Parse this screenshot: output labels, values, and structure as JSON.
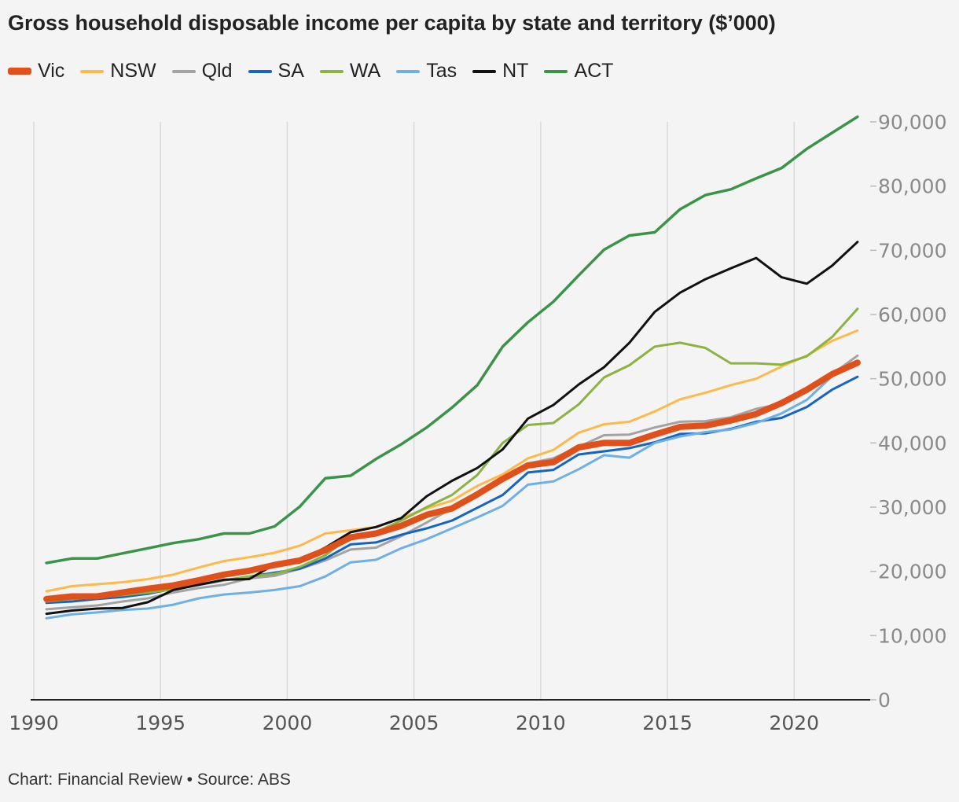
{
  "chart_data": {
    "type": "line",
    "title": "Gross household disposable income per capita by state and territory ($’000)",
    "source": "Chart: Financial Review • Source: ABS",
    "x": [
      1990.5,
      1991.5,
      1992.5,
      1993.5,
      1994.5,
      1995.5,
      1996.5,
      1997.5,
      1998.5,
      1999.5,
      2000.5,
      2001.5,
      2002.5,
      2003.5,
      2004.5,
      2005.5,
      2006.5,
      2007.5,
      2008.5,
      2009.5,
      2010.5,
      2011.5,
      2012.5,
      2013.5,
      2014.5,
      2015.5,
      2016.5,
      2017.5,
      2018.5,
      2019.5,
      2020.5,
      2021.5,
      2022.5
    ],
    "xlim": [
      1990,
      2023
    ],
    "ylim": [
      0,
      90000
    ],
    "x_ticks": [
      1990,
      1995,
      2000,
      2005,
      2010,
      2015,
      2020
    ],
    "x_tick_labels": [
      "1990",
      "1995",
      "2000",
      "2005",
      "2010",
      "2015",
      "2020"
    ],
    "y_ticks": [
      0,
      10000,
      20000,
      30000,
      40000,
      50000,
      60000,
      70000,
      80000,
      90000
    ],
    "y_tick_labels": [
      "0",
      "10,000",
      "20,000",
      "30,000",
      "40,000",
      "50,000",
      "60,000",
      "70,000",
      "80,000",
      "90,000"
    ],
    "grid": "vertical",
    "y_axis_position": "right",
    "legend_position": "top-left",
    "series": [
      {
        "name": "NSW",
        "color": "#fdb94a",
        "width": 3,
        "values": [
          16900,
          17700,
          18000,
          18300,
          18800,
          19500,
          20600,
          21600,
          22200,
          22900,
          24000,
          25900,
          26400,
          26900,
          28300,
          29800,
          31000,
          33300,
          35100,
          37600,
          38900,
          41600,
          42900,
          43300,
          44900,
          46800,
          47800,
          49000,
          50000,
          51900,
          53600,
          55900,
          57500
        ]
      },
      {
        "name": "Qld",
        "color": "#a3a3a3",
        "width": 3,
        "values": [
          14100,
          14400,
          14700,
          15300,
          15800,
          16700,
          17400,
          17900,
          18900,
          19300,
          20400,
          21700,
          23400,
          23700,
          25500,
          27600,
          29800,
          31700,
          34300,
          36800,
          37600,
          39400,
          41200,
          41300,
          42400,
          43300,
          43400,
          44000,
          45300,
          46100,
          47900,
          50700,
          53600
        ]
      },
      {
        "name": "SA",
        "color": "#1565c0",
        "width": 3,
        "values": [
          15100,
          15300,
          15700,
          16000,
          16500,
          17300,
          17900,
          18600,
          19200,
          19800,
          20400,
          22000,
          24200,
          24500,
          25700,
          26700,
          27900,
          29900,
          31900,
          35400,
          35800,
          38200,
          38700,
          39200,
          40100,
          41400,
          41500,
          42200,
          43300,
          43900,
          45600,
          48300,
          50300
        ]
      },
      {
        "name": "WA",
        "color": "#8bb33f",
        "width": 3,
        "values": [
          15300,
          15700,
          15900,
          16300,
          16700,
          17200,
          18000,
          18600,
          19200,
          19600,
          20700,
          22500,
          25500,
          26100,
          27900,
          30000,
          31900,
          35000,
          40000,
          42800,
          43100,
          46000,
          50200,
          52100,
          55000,
          55600,
          54800,
          52400,
          52400,
          52200,
          53500,
          56500,
          60900
        ]
      },
      {
        "name": "Tas",
        "color": "#6eb0e4",
        "width": 3,
        "values": [
          12700,
          13300,
          13600,
          14000,
          14200,
          14800,
          15800,
          16400,
          16700,
          17100,
          17700,
          19200,
          21400,
          21800,
          23600,
          25000,
          26700,
          28400,
          30200,
          33500,
          34000,
          35900,
          38100,
          37700,
          40000,
          41000,
          41700,
          42100,
          43100,
          44600,
          46700,
          50400,
          52400
        ]
      },
      {
        "name": "NT",
        "color": "#111111",
        "width": 3,
        "values": [
          13400,
          13900,
          14200,
          14300,
          15200,
          17100,
          17900,
          18700,
          18800,
          21100,
          21700,
          23700,
          26100,
          26900,
          28300,
          31700,
          34100,
          36100,
          39000,
          43800,
          45900,
          49100,
          51800,
          55600,
          60400,
          63400,
          65500,
          67200,
          68800,
          65800,
          64800,
          67600,
          71300
        ]
      },
      {
        "name": "ACT",
        "color": "#3a9446",
        "width": 3.5,
        "values": [
          21300,
          22000,
          22000,
          22800,
          23600,
          24400,
          25000,
          25900,
          25900,
          27000,
          30100,
          34500,
          34900,
          37500,
          39800,
          42400,
          45500,
          49000,
          55000,
          58800,
          62000,
          66100,
          70100,
          72300,
          72800,
          76400,
          78600,
          79500,
          81200,
          82800,
          85800,
          88300,
          90800
        ]
      },
      {
        "name": "Vic",
        "color": "#e0501b",
        "width": 8,
        "values": [
          15700,
          16100,
          16100,
          16700,
          17300,
          17800,
          18600,
          19500,
          20100,
          21000,
          21700,
          23300,
          25300,
          25900,
          27100,
          28800,
          29800,
          32000,
          34400,
          36500,
          37000,
          39300,
          40000,
          40000,
          41300,
          42500,
          42700,
          43500,
          44500,
          46200,
          48300,
          50700,
          52500
        ]
      }
    ]
  },
  "legend": [
    {
      "name": "Vic",
      "color": "#e0501b",
      "thick": true
    },
    {
      "name": "NSW",
      "color": "#fdb94a"
    },
    {
      "name": "Qld",
      "color": "#a3a3a3"
    },
    {
      "name": "SA",
      "color": "#1565c0"
    },
    {
      "name": "WA",
      "color": "#8bb33f"
    },
    {
      "name": "Tas",
      "color": "#6eb0e4"
    },
    {
      "name": "NT",
      "color": "#111111"
    },
    {
      "name": "ACT",
      "color": "#3a9446"
    }
  ]
}
